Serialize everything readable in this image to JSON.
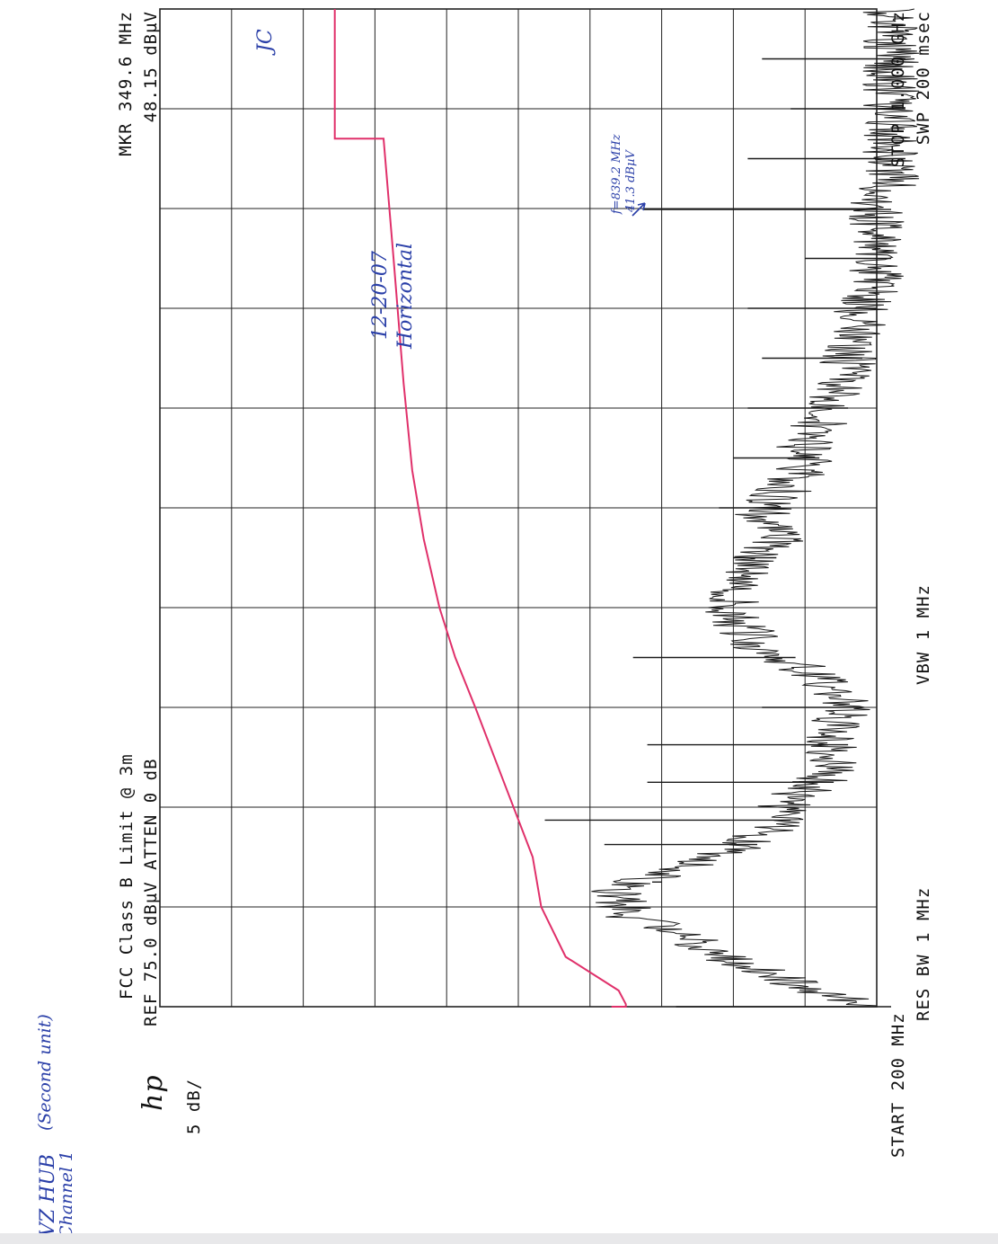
{
  "header": {
    "title_line": "FCC Class B Limit @ 3m",
    "ref_line": "REF 75.0 dBµV   ATTEN 0 dB",
    "scale": "5 dB/",
    "logo": "hp",
    "marker_freq": "MKR 349.6 MHz",
    "marker_level": "48.15 dBµV"
  },
  "footer": {
    "start": "START 200 MHz",
    "res_bw": "RES BW 1 MHz",
    "vbw": "VBW 1 MHz",
    "stop": "STOP 1.000 GHz",
    "swp": "SWP 200 msec"
  },
  "handwritten": {
    "device": "VZ HUB",
    "unit": "(Second unit)",
    "channel": "Channel 1",
    "date": "12-20-07",
    "polarization": "Horizontal",
    "initials": "JC",
    "note_freq": "f=839.2 MHz",
    "note_level": "41.3 dBµV"
  },
  "colors": {
    "trace": "#1a1a1a",
    "limit": "#e0306a",
    "grid": "#222222",
    "ink": "#2a3fa8"
  },
  "chart_data": {
    "type": "line",
    "orientation": "rotated-90-cw",
    "x_unit": "MHz",
    "y_unit": "dBµV",
    "xlim": [
      200,
      1000
    ],
    "ylim": [
      25,
      75
    ],
    "grid": true,
    "series": [
      {
        "name": "",
        "kind": "limit",
        "points": [
          [
            200,
            43.5
          ],
          [
            200,
            42.5
          ],
          [
            202,
            42.5
          ],
          [
            213,
            43.0
          ],
          [
            240,
            46.7
          ],
          [
            280,
            48.4
          ],
          [
            320,
            49.0
          ],
          [
            380,
            51.0
          ],
          [
            440,
            53.0
          ],
          [
            480,
            54.4
          ],
          [
            520,
            55.5
          ],
          [
            575,
            56.6
          ],
          [
            630,
            57.4
          ],
          [
            700,
            58.0
          ],
          [
            800,
            58.7
          ],
          [
            896,
            59.4
          ],
          [
            896,
            62.8
          ],
          [
            960,
            62.8
          ],
          [
            1000,
            62.8
          ]
        ]
      },
      {
        "name": "",
        "kind": "emission",
        "points": [
          [
            200,
            27
          ],
          [
            212,
            31
          ],
          [
            224,
            34
          ],
          [
            236,
            37
          ],
          [
            248,
            39
          ],
          [
            260,
            41
          ],
          [
            272,
            44
          ],
          [
            284,
            45
          ],
          [
            296,
            45
          ],
          [
            308,
            41
          ],
          [
            320,
            38
          ],
          [
            332,
            36
          ],
          [
            344,
            34
          ],
          [
            356,
            34
          ],
          [
            368,
            33
          ],
          [
            380,
            31
          ],
          [
            392,
            30
          ],
          [
            404,
            30
          ],
          [
            416,
            30
          ],
          [
            428,
            30
          ],
          [
            440,
            29
          ],
          [
            452,
            30
          ],
          [
            464,
            31
          ],
          [
            476,
            33
          ],
          [
            488,
            35
          ],
          [
            500,
            36
          ],
          [
            512,
            37
          ],
          [
            524,
            37
          ],
          [
            536,
            37
          ],
          [
            548,
            36
          ],
          [
            560,
            35
          ],
          [
            572,
            34
          ],
          [
            584,
            34
          ],
          [
            596,
            35
          ],
          [
            608,
            34
          ],
          [
            620,
            33
          ],
          [
            632,
            32
          ],
          [
            644,
            32
          ],
          [
            656,
            32
          ],
          [
            668,
            31
          ],
          [
            680,
            30
          ],
          [
            692,
            30
          ],
          [
            704,
            29
          ],
          [
            716,
            29
          ],
          [
            728,
            29
          ],
          [
            740,
            28
          ],
          [
            752,
            28
          ],
          [
            764,
            28
          ],
          [
            776,
            27
          ],
          [
            788,
            27
          ],
          [
            800,
            27
          ],
          [
            812,
            27
          ],
          [
            824,
            27
          ],
          [
            836,
            27
          ],
          [
            848,
            27
          ],
          [
            860,
            26
          ],
          [
            872,
            26
          ],
          [
            884,
            26
          ],
          [
            896,
            26
          ],
          [
            908,
            26
          ],
          [
            920,
            26
          ],
          [
            932,
            26
          ],
          [
            944,
            26
          ],
          [
            956,
            26
          ],
          [
            968,
            26
          ],
          [
            980,
            26
          ],
          [
            992,
            26
          ],
          [
            1000,
            26
          ]
        ],
        "spikes": [
          [
            200,
            39
          ],
          [
            300,
            40
          ],
          [
            330,
            44
          ],
          [
            349.6,
            48.15
          ],
          [
            380,
            41
          ],
          [
            410,
            41
          ],
          [
            440,
            33
          ],
          [
            480,
            42
          ],
          [
            520,
            34
          ],
          [
            560,
            35
          ],
          [
            600,
            36
          ],
          [
            640,
            35
          ],
          [
            680,
            34
          ],
          [
            720,
            33
          ],
          [
            760,
            34
          ],
          [
            800,
            30
          ],
          [
            839.2,
            41.3
          ],
          [
            880,
            34
          ],
          [
            920,
            31
          ],
          [
            960,
            33
          ]
        ]
      }
    ]
  }
}
